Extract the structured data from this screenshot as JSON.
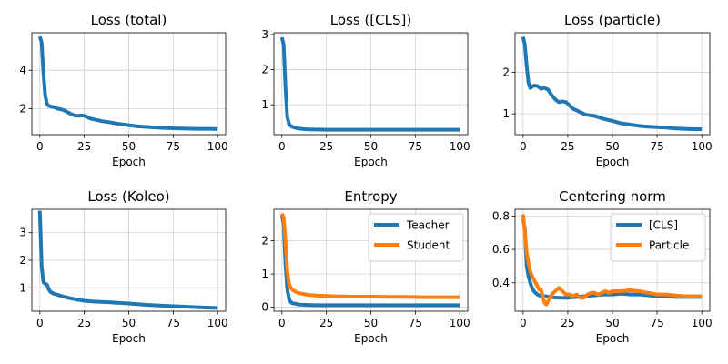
{
  "figure": {
    "chart_data": [
      {
        "type": "line",
        "title": "Loss (total)",
        "xlabel": "Epoch",
        "ylabel": "",
        "xlim": [
          -4.5,
          104.5
        ],
        "ylim": [
          0.65,
          5.95
        ],
        "xticks": [
          0,
          25,
          50,
          75,
          100
        ],
        "yticks": [
          2,
          4
        ],
        "grid": true,
        "legend": null,
        "series": [
          {
            "name": "Loss (total)",
            "color": "#1f77b4",
            "x": [
              0,
              1,
              2,
              3,
              4,
              5,
              6,
              8,
              10,
              12,
              14,
              16,
              18,
              20,
              22,
              24,
              26,
              28,
              30,
              35,
              40,
              45,
              50,
              55,
              60,
              65,
              70,
              75,
              80,
              85,
              90,
              95,
              100
            ],
            "y": [
              5.75,
              5.45,
              3.9,
              2.7,
              2.25,
              2.15,
              2.12,
              2.08,
              2.0,
              1.97,
              1.9,
              1.8,
              1.7,
              1.63,
              1.63,
              1.65,
              1.6,
              1.5,
              1.45,
              1.35,
              1.28,
              1.2,
              1.14,
              1.08,
              1.05,
              1.02,
              1.0,
              0.98,
              0.97,
              0.96,
              0.95,
              0.95,
              0.94
            ]
          }
        ]
      },
      {
        "type": "line",
        "title": "Loss ([CLS])",
        "xlabel": "Epoch",
        "ylabel": "",
        "xlim": [
          -4.5,
          104.5
        ],
        "ylim": [
          0.15,
          3.05
        ],
        "xticks": [
          0,
          25,
          50,
          75,
          100
        ],
        "yticks": [
          1,
          2,
          3
        ],
        "grid": true,
        "legend": null,
        "series": [
          {
            "name": "Loss ([CLS])",
            "color": "#1f77b4",
            "x": [
              0,
              1,
              2,
              3,
              4,
              5,
              6,
              8,
              10,
              12,
              15,
              20,
              25,
              30,
              40,
              50,
              60,
              70,
              80,
              90,
              100
            ],
            "y": [
              2.92,
              2.7,
              1.5,
              0.65,
              0.45,
              0.4,
              0.37,
              0.34,
              0.32,
              0.31,
              0.3,
              0.295,
              0.29,
              0.29,
              0.29,
              0.29,
              0.29,
              0.29,
              0.29,
              0.29,
              0.29
            ]
          }
        ]
      },
      {
        "type": "line",
        "title": "Loss (particle)",
        "xlabel": "Epoch",
        "ylabel": "",
        "xlim": [
          -4.5,
          104.5
        ],
        "ylim": [
          0.5,
          2.95
        ],
        "xticks": [
          0,
          25,
          50,
          75,
          100
        ],
        "yticks": [
          1,
          2
        ],
        "grid": true,
        "legend": null,
        "series": [
          {
            "name": "Loss (particle)",
            "color": "#1f77b4",
            "x": [
              0,
              1,
              2,
              3,
              4,
              5,
              6,
              8,
              10,
              12,
              14,
              16,
              18,
              20,
              22,
              24,
              26,
              28,
              30,
              35,
              40,
              45,
              50,
              55,
              60,
              65,
              70,
              75,
              80,
              85,
              90,
              95,
              100
            ],
            "y": [
              2.85,
              2.65,
              2.15,
              1.75,
              1.62,
              1.65,
              1.68,
              1.67,
              1.6,
              1.63,
              1.58,
              1.45,
              1.35,
              1.28,
              1.3,
              1.28,
              1.2,
              1.12,
              1.08,
              0.98,
              0.95,
              0.88,
              0.83,
              0.77,
              0.74,
              0.71,
              0.69,
              0.68,
              0.67,
              0.65,
              0.64,
              0.63,
              0.63
            ]
          }
        ]
      },
      {
        "type": "line",
        "title": "Loss (Koleo)",
        "xlabel": "Epoch",
        "ylabel": "",
        "xlim": [
          -4.5,
          104.5
        ],
        "ylim": [
          0.15,
          3.85
        ],
        "xticks": [
          0,
          25,
          50,
          75,
          100
        ],
        "yticks": [
          1,
          2,
          3
        ],
        "grid": true,
        "legend": null,
        "series": [
          {
            "name": "Loss (Koleo)",
            "color": "#1f77b4",
            "x": [
              0,
              1,
              2,
              3,
              4,
              5,
              6,
              8,
              10,
              12,
              15,
              20,
              25,
              30,
              40,
              50,
              60,
              70,
              80,
              90,
              100
            ],
            "y": [
              3.8,
              1.8,
              1.2,
              1.15,
              1.12,
              0.95,
              0.85,
              0.78,
              0.75,
              0.7,
              0.65,
              0.58,
              0.53,
              0.5,
              0.47,
              0.43,
              0.38,
              0.35,
              0.32,
              0.29,
              0.27
            ]
          }
        ]
      },
      {
        "type": "line",
        "title": "Entropy",
        "xlabel": "Epoch",
        "ylabel": "",
        "xlim": [
          -4.5,
          104.5
        ],
        "ylim": [
          -0.12,
          2.95
        ],
        "xticks": [
          0,
          25,
          50,
          75,
          100
        ],
        "yticks": [
          0,
          1,
          2
        ],
        "grid": true,
        "legend": "upper right",
        "series": [
          {
            "name": "Teacher",
            "color": "#1f77b4",
            "x": [
              0,
              1,
              2,
              3,
              4,
              5,
              6,
              8,
              10,
              15,
              20,
              30,
              40,
              50,
              60,
              70,
              80,
              90,
              100
            ],
            "y": [
              2.78,
              2.5,
              1.3,
              0.55,
              0.25,
              0.15,
              0.12,
              0.1,
              0.08,
              0.07,
              0.06,
              0.06,
              0.06,
              0.06,
              0.06,
              0.06,
              0.06,
              0.06,
              0.06
            ]
          },
          {
            "name": "Student",
            "color": "#ff7f0e",
            "x": [
              0,
              1,
              2,
              3,
              4,
              5,
              6,
              8,
              10,
              15,
              20,
              30,
              40,
              50,
              60,
              70,
              80,
              90,
              100
            ],
            "y": [
              2.82,
              2.7,
              2.0,
              1.1,
              0.7,
              0.58,
              0.52,
              0.46,
              0.42,
              0.37,
              0.35,
              0.33,
              0.32,
              0.32,
              0.31,
              0.31,
              0.3,
              0.3,
              0.3
            ]
          }
        ]
      },
      {
        "type": "line",
        "title": "Centering norm",
        "xlabel": "Epoch",
        "ylabel": "",
        "xlim": [
          -4.5,
          104.5
        ],
        "ylim": [
          0.23,
          0.84
        ],
        "xticks": [
          0,
          25,
          50,
          75,
          100
        ],
        "yticks": [
          0.4,
          0.6,
          0.8
        ],
        "grid": true,
        "legend": "upper right",
        "series": [
          {
            "name": "[CLS]",
            "color": "#1f77b4",
            "x": [
              0,
              1,
              2,
              3,
              4,
              5,
              6,
              7,
              8,
              10,
              12,
              15,
              20,
              25,
              30,
              35,
              40,
              45,
              50,
              55,
              60,
              65,
              70,
              75,
              80,
              85,
              90,
              95,
              100
            ],
            "y": [
              0.78,
              0.72,
              0.5,
              0.44,
              0.4,
              0.37,
              0.35,
              0.34,
              0.33,
              0.32,
              0.32,
              0.315,
              0.31,
              0.31,
              0.315,
              0.32,
              0.325,
              0.33,
              0.33,
              0.335,
              0.33,
              0.33,
              0.325,
              0.32,
              0.32,
              0.315,
              0.315,
              0.315,
              0.315
            ]
          },
          {
            "name": "Particle",
            "color": "#ff7f0e",
            "x": [
              0,
              1,
              2,
              3,
              4,
              5,
              6,
              7,
              8,
              9,
              10,
              11,
              12,
              13,
              14,
              15,
              16,
              18,
              20,
              22,
              24,
              26,
              28,
              30,
              32,
              34,
              36,
              38,
              40,
              42,
              44,
              46,
              48,
              50,
              55,
              60,
              65,
              70,
              75,
              80,
              85,
              90,
              95,
              100
            ],
            "y": [
              0.81,
              0.7,
              0.58,
              0.52,
              0.47,
              0.44,
              0.42,
              0.4,
              0.38,
              0.36,
              0.36,
              0.32,
              0.28,
              0.27,
              0.29,
              0.31,
              0.33,
              0.35,
              0.37,
              0.35,
              0.33,
              0.33,
              0.32,
              0.33,
              0.31,
              0.31,
              0.33,
              0.34,
              0.34,
              0.33,
              0.34,
              0.35,
              0.34,
              0.35,
              0.35,
              0.355,
              0.35,
              0.34,
              0.33,
              0.33,
              0.325,
              0.32,
              0.32,
              0.32
            ]
          }
        ]
      }
    ]
  }
}
